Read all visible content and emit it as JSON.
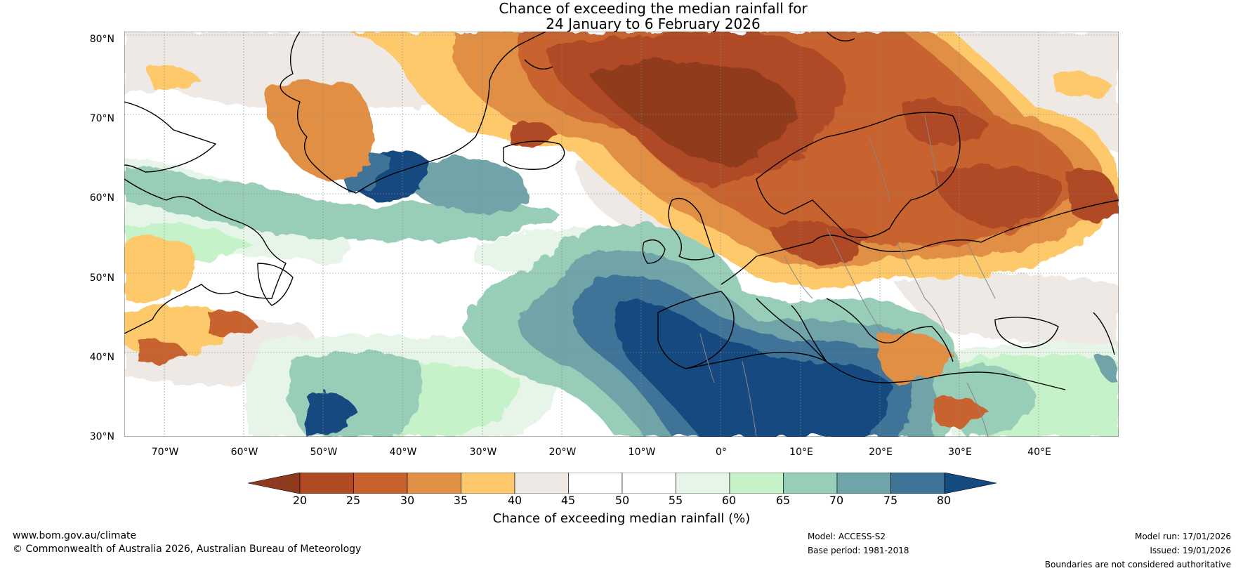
{
  "title": {
    "line1": "Chance of exceeding the median rainfall for",
    "line2": "24 January to 6 February 2026"
  },
  "map": {
    "lat_labels": [
      "80°N",
      "70°N",
      "60°N",
      "50°N",
      "40°N",
      "30°N"
    ],
    "lon_labels": [
      "70°W",
      "60°W",
      "50°W",
      "40°W",
      "30°W",
      "20°W",
      "10°W",
      "0°",
      "10°E",
      "20°E",
      "30°E",
      "40°E"
    ],
    "lat_range": [
      30,
      80
    ],
    "lon_range": [
      -75,
      50
    ]
  },
  "legend": {
    "ticks": [
      "20",
      "25",
      "30",
      "35",
      "40",
      "45",
      "50",
      "55",
      "60",
      "65",
      "70",
      "75",
      "80"
    ],
    "colors": [
      "#8f3a1f",
      "#b04a25",
      "#c8622f",
      "#e08f45",
      "#fdc96b",
      "#efe9e5",
      "#ffffff",
      "#ffffff",
      "#e6f5e7",
      "#c6f2c9",
      "#98cdb8",
      "#6fa4a8",
      "#3f7398",
      "#134a80"
    ],
    "label": "Chance of exceeding median rainfall (%)"
  },
  "footer": {
    "website": "www.bom.gov.au/climate",
    "copyright": "© Commonwealth of Australia 2026, Australian Bureau of Meteorology",
    "model": "Model: ACCESS-S2",
    "base_period": "Base period: 1981-2018",
    "model_run": "Model run: 17/01/2026",
    "issued": "Issued: 19/01/2026",
    "disclaimer": "Boundaries are not considered authoritative"
  }
}
